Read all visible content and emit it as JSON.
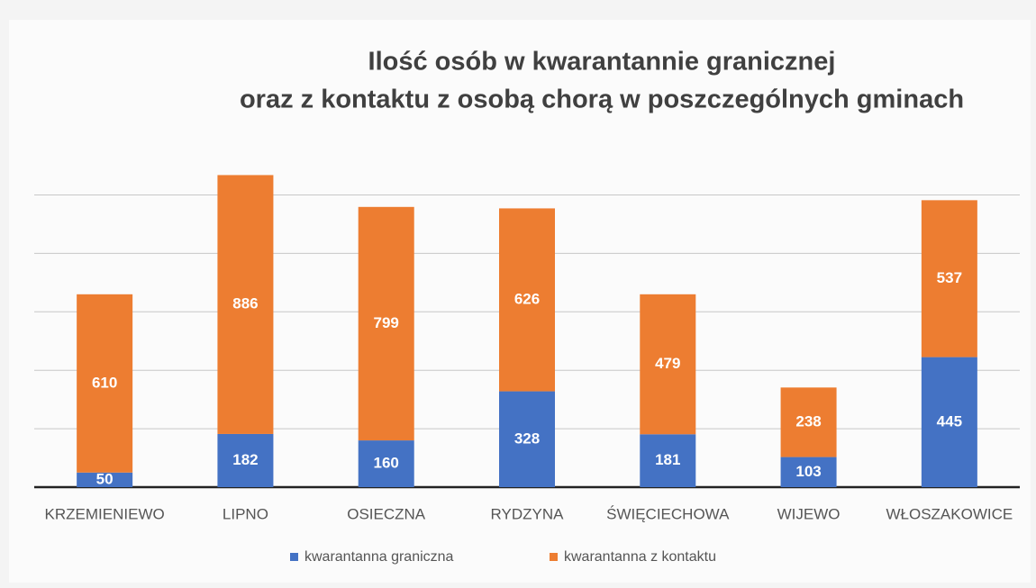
{
  "chart_data": {
    "type": "stacked_bar",
    "title": [
      "Ilość osób w kwarantannie granicznej",
      "oraz z kontaktu z osobą chorą  w poszczególnych gminach"
    ],
    "categories": [
      "KRZEMIENIEWO",
      "LIPNO",
      "OSIECZNA",
      "RYDZYNA",
      "ŚWIĘCIECHOWA",
      "WIJEWO",
      "WŁOSZAKOWICE"
    ],
    "series": [
      {
        "name": "kwarantanna graniczna",
        "color": "#4472c4",
        "values": [
          50,
          182,
          160,
          328,
          181,
          103,
          445
        ]
      },
      {
        "name": "kwarantanna z kontaktu",
        "color": "#ed7d31",
        "values": [
          610,
          886,
          799,
          626,
          479,
          238,
          537
        ]
      }
    ],
    "ylim": [
      0,
      1100
    ],
    "yticks": [
      0,
      200,
      400,
      600,
      800,
      1000
    ],
    "grid": true,
    "legend": "bottom"
  }
}
